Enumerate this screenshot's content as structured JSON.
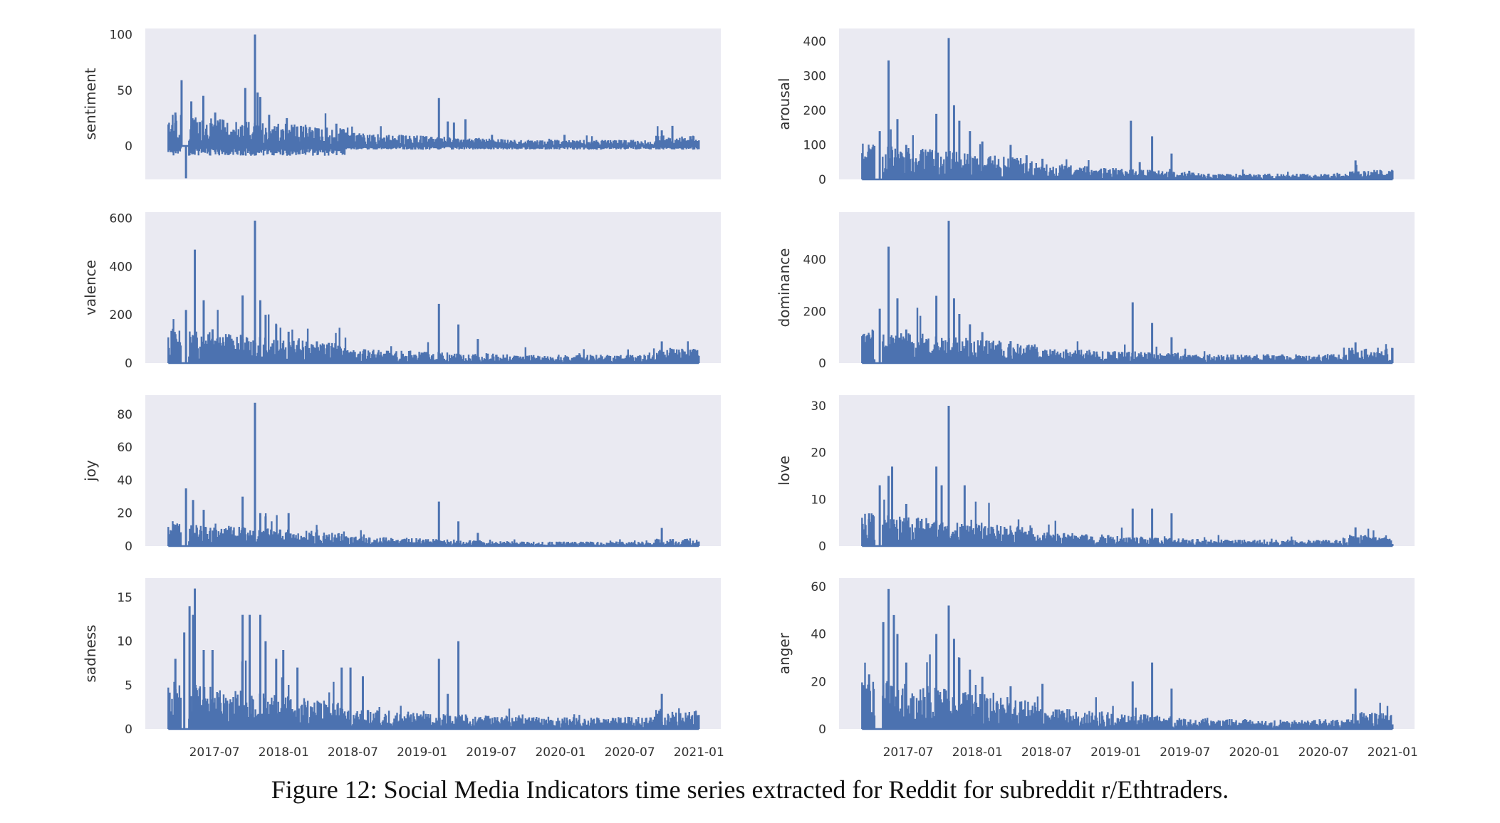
{
  "caption": "Figure 12: Social Media Indicators time series extracted for Reddit for subreddit r/Ethtraders.",
  "style": {
    "panel_background": "#eaeaf2",
    "line_color": "#4c72b0",
    "text_color": "#333333"
  },
  "chart_data": [
    {
      "type": "line",
      "ylabel": "sentiment",
      "ylim": [
        -30,
        100
      ],
      "yticks": [
        0,
        50,
        100
      ],
      "peaks": [
        {
          "at": 0.49,
          "value": 100
        },
        {
          "at": 0.435,
          "value": 52
        },
        {
          "at": 0.075,
          "value": 59
        },
        {
          "at": 0.04,
          "value": 30
        },
        {
          "at": 0.13,
          "value": 40
        },
        {
          "at": 0.198,
          "value": 45
        },
        {
          "at": 0.265,
          "value": 30
        },
        {
          "at": 0.505,
          "value": 48
        },
        {
          "at": 0.52,
          "value": 44
        },
        {
          "at": 0.57,
          "value": 28
        },
        {
          "at": 0.67,
          "value": 25
        },
        {
          "at": 0.75,
          "value": 18
        },
        {
          "at": 0.8,
          "value": 17
        },
        {
          "at": 0.95,
          "value": 20
        },
        {
          "at": 1.53,
          "value": 43
        },
        {
          "at": 1.58,
          "value": 22
        },
        {
          "at": 1.615,
          "value": 21
        },
        {
          "at": 1.68,
          "value": 24
        },
        {
          "at": 1.83,
          "value": 10
        },
        {
          "at": 2.24,
          "value": 10
        },
        {
          "at": 2.79,
          "value": 14
        },
        {
          "at": 2.85,
          "value": 18
        }
      ],
      "baseline": {
        "early": 16,
        "late": 4
      },
      "dips": {
        "early": -8,
        "late": -3
      },
      "special_dips": [
        {
          "at": 0.1,
          "value": -29
        },
        {
          "at": 0.76,
          "value": -7
        }
      ],
      "ticks": []
    },
    {
      "type": "line",
      "ylabel": "arousal",
      "ylim": [
        0,
        420
      ],
      "yticks": [
        0,
        100,
        200,
        300,
        400
      ],
      "peaks": [
        {
          "at": 0.15,
          "value": 345
        },
        {
          "at": 0.49,
          "value": 410
        },
        {
          "at": 0.04,
          "value": 90
        },
        {
          "at": 0.1,
          "value": 140
        },
        {
          "at": 0.2,
          "value": 175
        },
        {
          "at": 0.25,
          "value": 100
        },
        {
          "at": 0.42,
          "value": 190
        },
        {
          "at": 0.52,
          "value": 215
        },
        {
          "at": 0.55,
          "value": 170
        },
        {
          "at": 0.61,
          "value": 140
        },
        {
          "at": 0.68,
          "value": 110
        },
        {
          "at": 0.84,
          "value": 100
        },
        {
          "at": 0.93,
          "value": 70
        },
        {
          "at": 1.02,
          "value": 60
        },
        {
          "at": 1.52,
          "value": 170
        },
        {
          "at": 1.64,
          "value": 125
        },
        {
          "at": 1.57,
          "value": 50
        },
        {
          "at": 1.75,
          "value": 75
        },
        {
          "at": 1.85,
          "value": 25
        },
        {
          "at": 2.79,
          "value": 55
        }
      ],
      "baseline": {
        "early": 60,
        "late": 12
      },
      "dips": {
        "early": 0,
        "late": 0
      },
      "special_dips": [],
      "ticks": []
    },
    {
      "type": "line",
      "ylabel": "valence",
      "ylim": [
        0,
        600
      ],
      "yticks": [
        0,
        200,
        400,
        600
      ],
      "peaks": [
        {
          "at": 0.15,
          "value": 470
        },
        {
          "at": 0.49,
          "value": 590
        },
        {
          "at": 0.04,
          "value": 120
        },
        {
          "at": 0.1,
          "value": 220
        },
        {
          "at": 0.2,
          "value": 260
        },
        {
          "at": 0.25,
          "value": 140
        },
        {
          "at": 0.42,
          "value": 280
        },
        {
          "at": 0.52,
          "value": 260
        },
        {
          "at": 0.55,
          "value": 200
        },
        {
          "at": 0.61,
          "value": 160
        },
        {
          "at": 0.68,
          "value": 130
        },
        {
          "at": 0.84,
          "value": 90
        },
        {
          "at": 0.93,
          "value": 65
        },
        {
          "at": 1.53,
          "value": 245
        },
        {
          "at": 1.64,
          "value": 160
        },
        {
          "at": 1.75,
          "value": 100
        },
        {
          "at": 2.79,
          "value": 90
        }
      ],
      "baseline": {
        "early": 80,
        "late": 25
      },
      "dips": {
        "early": 0,
        "late": 0
      },
      "special_dips": [],
      "ticks": []
    },
    {
      "type": "line",
      "ylabel": "dominance",
      "ylim": [
        0,
        560
      ],
      "yticks": [
        0,
        200,
        400
      ],
      "peaks": [
        {
          "at": 0.15,
          "value": 450
        },
        {
          "at": 0.49,
          "value": 550
        },
        {
          "at": 0.04,
          "value": 110
        },
        {
          "at": 0.1,
          "value": 210
        },
        {
          "at": 0.2,
          "value": 250
        },
        {
          "at": 0.25,
          "value": 130
        },
        {
          "at": 0.42,
          "value": 260
        },
        {
          "at": 0.52,
          "value": 250
        },
        {
          "at": 0.55,
          "value": 190
        },
        {
          "at": 0.61,
          "value": 150
        },
        {
          "at": 0.68,
          "value": 120
        },
        {
          "at": 0.84,
          "value": 85
        },
        {
          "at": 0.93,
          "value": 60
        },
        {
          "at": 1.53,
          "value": 235
        },
        {
          "at": 1.64,
          "value": 155
        },
        {
          "at": 1.75,
          "value": 100
        },
        {
          "at": 2.79,
          "value": 80
        }
      ],
      "baseline": {
        "early": 75,
        "late": 25
      },
      "dips": {
        "early": 0,
        "late": 0
      },
      "special_dips": [],
      "ticks": []
    },
    {
      "type": "line",
      "ylabel": "joy",
      "ylim": [
        0,
        88
      ],
      "yticks": [
        0,
        20,
        40,
        60,
        80
      ],
      "peaks": [
        {
          "at": 0.49,
          "value": 87
        },
        {
          "at": 0.1,
          "value": 35
        },
        {
          "at": 0.14,
          "value": 28
        },
        {
          "at": 0.04,
          "value": 13
        },
        {
          "at": 0.2,
          "value": 22
        },
        {
          "at": 0.42,
          "value": 30
        },
        {
          "at": 0.52,
          "value": 20
        },
        {
          "at": 0.55,
          "value": 18
        },
        {
          "at": 0.68,
          "value": 20
        },
        {
          "at": 0.84,
          "value": 10
        },
        {
          "at": 1.53,
          "value": 27
        },
        {
          "at": 1.64,
          "value": 15
        },
        {
          "at": 1.75,
          "value": 8
        },
        {
          "at": 2.79,
          "value": 11
        }
      ],
      "baseline": {
        "early": 8,
        "late": 2
      },
      "dips": {
        "early": 0,
        "late": 0
      },
      "special_dips": [],
      "ticks": []
    },
    {
      "type": "line",
      "ylabel": "love",
      "ylim": [
        0,
        31
      ],
      "yticks": [
        0,
        10,
        20,
        30
      ],
      "peaks": [
        {
          "at": 0.49,
          "value": 30
        },
        {
          "at": 0.17,
          "value": 17
        },
        {
          "at": 0.1,
          "value": 13
        },
        {
          "at": 0.15,
          "value": 15
        },
        {
          "at": 0.04,
          "value": 7
        },
        {
          "at": 0.42,
          "value": 17
        },
        {
          "at": 0.45,
          "value": 13
        },
        {
          "at": 0.58,
          "value": 13
        },
        {
          "at": 0.25,
          "value": 9
        },
        {
          "at": 1.53,
          "value": 8
        },
        {
          "at": 1.64,
          "value": 8
        },
        {
          "at": 1.75,
          "value": 7
        },
        {
          "at": 2.79,
          "value": 4
        }
      ],
      "baseline": {
        "early": 4,
        "late": 1
      },
      "dips": {
        "early": 0,
        "late": 0
      },
      "special_dips": [],
      "ticks": []
    },
    {
      "type": "line",
      "ylabel": "sadness",
      "ylim": [
        0,
        16.5
      ],
      "yticks": [
        0,
        5,
        10,
        15
      ],
      "peaks": [
        {
          "at": 0.15,
          "value": 16
        },
        {
          "at": 0.12,
          "value": 14
        },
        {
          "at": 0.14,
          "value": 13
        },
        {
          "at": 0.04,
          "value": 8
        },
        {
          "at": 0.09,
          "value": 11
        },
        {
          "at": 0.2,
          "value": 9
        },
        {
          "at": 0.25,
          "value": 9
        },
        {
          "at": 0.42,
          "value": 13
        },
        {
          "at": 0.46,
          "value": 13
        },
        {
          "at": 0.52,
          "value": 13
        },
        {
          "at": 0.55,
          "value": 10
        },
        {
          "at": 0.61,
          "value": 8
        },
        {
          "at": 0.65,
          "value": 9
        },
        {
          "at": 0.73,
          "value": 7
        },
        {
          "at": 0.98,
          "value": 7
        },
        {
          "at": 1.03,
          "value": 7
        },
        {
          "at": 1.1,
          "value": 6
        },
        {
          "at": 1.53,
          "value": 8
        },
        {
          "at": 1.64,
          "value": 10
        },
        {
          "at": 1.58,
          "value": 4
        },
        {
          "at": 2.79,
          "value": 4
        }
      ],
      "baseline": {
        "early": 3,
        "late": 1
      },
      "dips": {
        "early": 0,
        "late": 0
      },
      "special_dips": [],
      "ticks": [
        "2017-07",
        "2018-01",
        "2018-07",
        "2019-01",
        "2019-07",
        "2020-01",
        "2020-07",
        "2021-01"
      ]
    },
    {
      "type": "line",
      "ylabel": "anger",
      "ylim": [
        0,
        61
      ],
      "yticks": [
        0,
        20,
        40,
        60
      ],
      "peaks": [
        {
          "at": 0.15,
          "value": 59
        },
        {
          "at": 0.49,
          "value": 52
        },
        {
          "at": 0.12,
          "value": 45
        },
        {
          "at": 0.18,
          "value": 48
        },
        {
          "at": 0.04,
          "value": 23
        },
        {
          "at": 0.2,
          "value": 40
        },
        {
          "at": 0.25,
          "value": 28
        },
        {
          "at": 0.42,
          "value": 40
        },
        {
          "at": 0.52,
          "value": 38
        },
        {
          "at": 0.55,
          "value": 30
        },
        {
          "at": 0.61,
          "value": 25
        },
        {
          "at": 0.68,
          "value": 22
        },
        {
          "at": 0.84,
          "value": 18
        },
        {
          "at": 1.02,
          "value": 19
        },
        {
          "at": 1.53,
          "value": 20
        },
        {
          "at": 1.64,
          "value": 28
        },
        {
          "at": 1.75,
          "value": 17
        },
        {
          "at": 2.79,
          "value": 17
        }
      ],
      "baseline": {
        "early": 12,
        "late": 3
      },
      "dips": {
        "early": 0,
        "late": 0
      },
      "special_dips": [],
      "ticks": [
        "2017-07",
        "2018-01",
        "2018-07",
        "2019-01",
        "2019-07",
        "2020-01",
        "2020-07",
        "2021-01"
      ]
    }
  ],
  "x_axis": {
    "ticks": [
      "2017-07",
      "2018-01",
      "2018-07",
      "2019-01",
      "2019-07",
      "2020-01",
      "2020-07",
      "2021-01"
    ],
    "range": [
      "2017-03",
      "2021-01"
    ]
  }
}
